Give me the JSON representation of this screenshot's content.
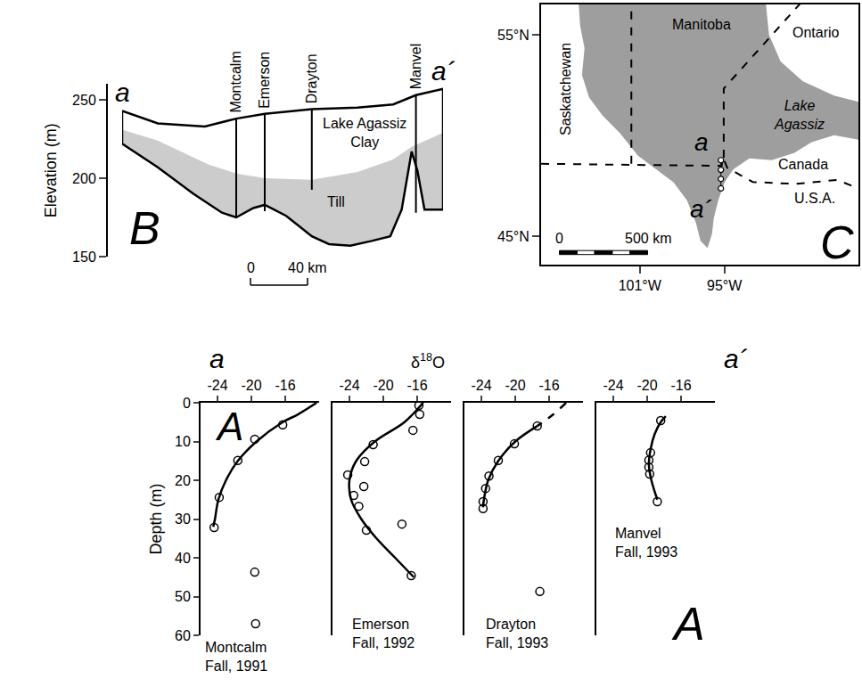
{
  "chart_data": [
    {
      "type": "cross_section",
      "panel": "B",
      "ylabel": "Elevation (m)",
      "xlim": [
        0,
        225
      ],
      "ylim": [
        150,
        260
      ],
      "yticks": [
        150,
        200,
        250
      ],
      "tick_labels": "y",
      "surface": {
        "x": [
          0,
          25,
          58,
          80,
          100,
          133,
          165,
          190,
          206,
          225
        ],
        "y": [
          243,
          235,
          233,
          238,
          241,
          244,
          245,
          247,
          253,
          257
        ]
      },
      "till_top": {
        "x": [
          0,
          25,
          60,
          80,
          100,
          133,
          165,
          190,
          203,
          225
        ],
        "y": [
          231,
          224,
          209,
          203,
          200,
          199,
          204,
          212,
          220,
          229
        ]
      },
      "base": {
        "x": [
          0,
          25,
          50,
          70,
          80,
          92,
          100,
          115,
          133,
          145,
          160,
          175,
          188,
          196,
          203,
          207,
          212,
          225
        ],
        "y": [
          222,
          207,
          190,
          178,
          175,
          181,
          183,
          176,
          163,
          158,
          157,
          160,
          163,
          180,
          217,
          205,
          180,
          180
        ]
      },
      "units": [
        {
          "name": "Lake Agassiz Clay",
          "color": "#ffffff",
          "x": 170,
          "y": 229
        },
        {
          "name": "Till",
          "color": "#cccccc",
          "x": 150,
          "y": 185
        }
      ],
      "wells": [
        {
          "name": "Montcalm",
          "x": 80,
          "top": 238,
          "bottom": 175
        },
        {
          "name": "Emerson",
          "x": 100,
          "top": 241,
          "bottom": 179
        },
        {
          "name": "Drayton",
          "x": 133,
          "top": 244,
          "bottom": 192.6
        },
        {
          "name": "Manvel",
          "x": 206,
          "top": 253,
          "bottom": 178
        }
      ],
      "section_ends": [
        "a",
        "a´"
      ],
      "scale_bar": {
        "length": 40,
        "labels": [
          "0",
          "40 km"
        ]
      }
    },
    {
      "type": "map",
      "panel": "C",
      "xlim": [
        -108,
        -85.5
      ],
      "ylim": [
        43.6,
        56.5
      ],
      "xticks": [
        {
          "value": -101,
          "label": "101°W"
        },
        {
          "value": -95,
          "label": "95°W"
        }
      ],
      "yticks": [
        {
          "value": 45,
          "label": "45°N"
        },
        {
          "value": 55,
          "label": "55°N"
        }
      ],
      "lake": {
        "name": "Lake Agassiz",
        "color": "#9e9e9e",
        "label_lon": -89.7,
        "label_lat": 51.0,
        "lon": [
          -105.36,
          -92.1,
          -91.84,
          -91.02,
          -89.44,
          -87.23,
          -84.5,
          -84.5,
          -87.23,
          -88.81,
          -90.07,
          -91.65,
          -93.23,
          -94.37,
          -95.0,
          -95.44,
          -95.76,
          -95.88,
          -96.2,
          -96.7,
          -97.02,
          -97.65,
          -98.6,
          -99.86,
          -101.13,
          -102.39,
          -103.65,
          -104.6,
          -105.1,
          -104.92,
          -105.23
        ],
        "lat": [
          56.8,
          56.8,
          55.0,
          53.67,
          52.69,
          51.98,
          51.5,
          49.67,
          50.02,
          49.67,
          49.13,
          48.78,
          48.87,
          48.33,
          47.67,
          46.78,
          45.89,
          45.13,
          44.42,
          44.78,
          45.67,
          46.78,
          47.67,
          48.33,
          49.0,
          50.11,
          51.0,
          51.89,
          53.0,
          54.33,
          55.44
        ]
      },
      "borders": [
        {
          "line_style": "dashed",
          "lon": [
            -101.6,
            -101.6
          ],
          "lat": [
            48.6,
            56.8
          ]
        },
        {
          "line_style": "dashed",
          "lon": [
            -108,
            -95.2,
            -95.1,
            -94.8,
            -93,
            -90,
            -87,
            -84.5
          ],
          "lat": [
            48.6,
            48.5,
            48.9,
            48.4,
            47.7,
            47.6,
            47.8,
            47.1
          ]
        },
        {
          "line_style": "dashed",
          "lon": [
            -95.05,
            -95.05,
            -89.3
          ],
          "lat": [
            48.9,
            52.33,
            56.8
          ]
        }
      ],
      "labels": [
        {
          "text": "Manitoba",
          "lon": -96.6,
          "lat": 55.5
        },
        {
          "text": "Ontario",
          "lon": -88.5,
          "lat": 55.1
        },
        {
          "text": "Saskatchewan",
          "lon": -106.3,
          "lat": 52.3
        },
        {
          "text": "Canada",
          "lon": -89.4,
          "lat": 48.55
        },
        {
          "text": "U.S.A.",
          "lon": -88.6,
          "lat": 46.9
        }
      ],
      "sites": {
        "lon": [
          -95.25,
          -95.25,
          -95.25,
          -95.25
        ],
        "lat": [
          48.78,
          48.3,
          47.85,
          47.38
        ]
      },
      "section_ends": [
        "a",
        "a´"
      ],
      "scale_bar": {
        "length": 500,
        "labels": [
          "0",
          "500 km"
        ]
      }
    },
    {
      "type": "scatter",
      "panel": "A",
      "xlabel": "δ18O",
      "ylabel": "Depth (m)",
      "xlim": [
        -26,
        -12
      ],
      "xticks": [
        -24,
        -20,
        -16
      ],
      "ylim": [
        60,
        0
      ],
      "yticks": [
        0,
        10,
        20,
        30,
        40,
        50,
        60
      ],
      "marker": "circle-open",
      "section_ends": [
        "a",
        "a´"
      ],
      "panels": [
        {
          "title": "Montcalm Fall, 1991",
          "points": {
            "x": [
              -16.3,
              -19.6,
              -21.6,
              -23.8,
              -24.4,
              -19.6,
              -19.5
            ],
            "y": [
              5.7,
              9.4,
              14.9,
              24.4,
              32.2,
              43.7,
              57.0
            ]
          },
          "curves": [
            {
              "line_style": "solid",
              "x": [
                -12.3,
                -14.5,
                -16.3,
                -19.4,
                -21.6,
                -23.0,
                -23.9,
                -24.3,
                -24.5
              ],
              "y": [
                0,
                3,
                5,
                10,
                15,
                20,
                25,
                30,
                32
              ]
            }
          ]
        },
        {
          "title": "Emerson Fall, 1992",
          "tick_labels": "x",
          "points": {
            "x": [
              -15.8,
              -15.7,
              -16.5,
              -21.2,
              -22.2,
              -24.2,
              -22.3,
              -23.5,
              -22.9,
              -22.0,
              -17.8,
              -16.7
            ],
            "y": [
              0.7,
              3.0,
              7.1,
              10.8,
              15.2,
              18.6,
              21.6,
              23.9,
              26.7,
              32.9,
              31.3,
              44.6
            ]
          },
          "curves": [
            {
              "line_style": "solid",
              "x": [
                -15.3,
                -17.5,
                -21.0,
                -23.2,
                -24.0,
                -23.8,
                -22.6,
                -20.8,
                -18.6,
                -16.4
              ],
              "y": [
                0,
                5,
                10,
                15,
                20,
                25,
                30,
                35,
                40,
                45
              ]
            }
          ]
        },
        {
          "title": "Drayton Fall, 1993",
          "tick_labels": "x",
          "points": {
            "x": [
              -17.4,
              -20.1,
              -22.0,
              -23.1,
              -23.5,
              -23.8,
              -23.8,
              -17.1
            ],
            "y": [
              6.0,
              10.6,
              14.9,
              18.9,
              22.1,
              25.5,
              27.3,
              48.7
            ]
          },
          "curves": [
            {
              "line_style": "solid",
              "x": [
                -17.4,
                -20.0,
                -22.0,
                -23.2,
                -23.7,
                -23.8
              ],
              "y": [
                6,
                10,
                15,
                20,
                25,
                27
              ]
            },
            {
              "line_style": "dashed",
              "x": [
                -14.0,
                -15.5,
                -17.4
              ],
              "y": [
                0,
                3,
                6
              ]
            }
          ]
        },
        {
          "title": "Manvel Fall, 1993",
          "tick_labels": "x",
          "points": {
            "x": [
              -18.4,
              -19.6,
              -19.8,
              -19.8,
              -19.7,
              -18.8
            ],
            "y": [
              4.6,
              12.9,
              14.8,
              16.6,
              18.4,
              25.5
            ]
          },
          "curves": [
            {
              "line_style": "solid",
              "x": [
                -17.8,
                -18.4,
                -19.1,
                -19.6,
                -19.8,
                -19.5,
                -18.8
              ],
              "y": [
                3.5,
                5,
                8,
                12,
                16,
                20,
                25
              ]
            }
          ]
        }
      ]
    }
  ]
}
